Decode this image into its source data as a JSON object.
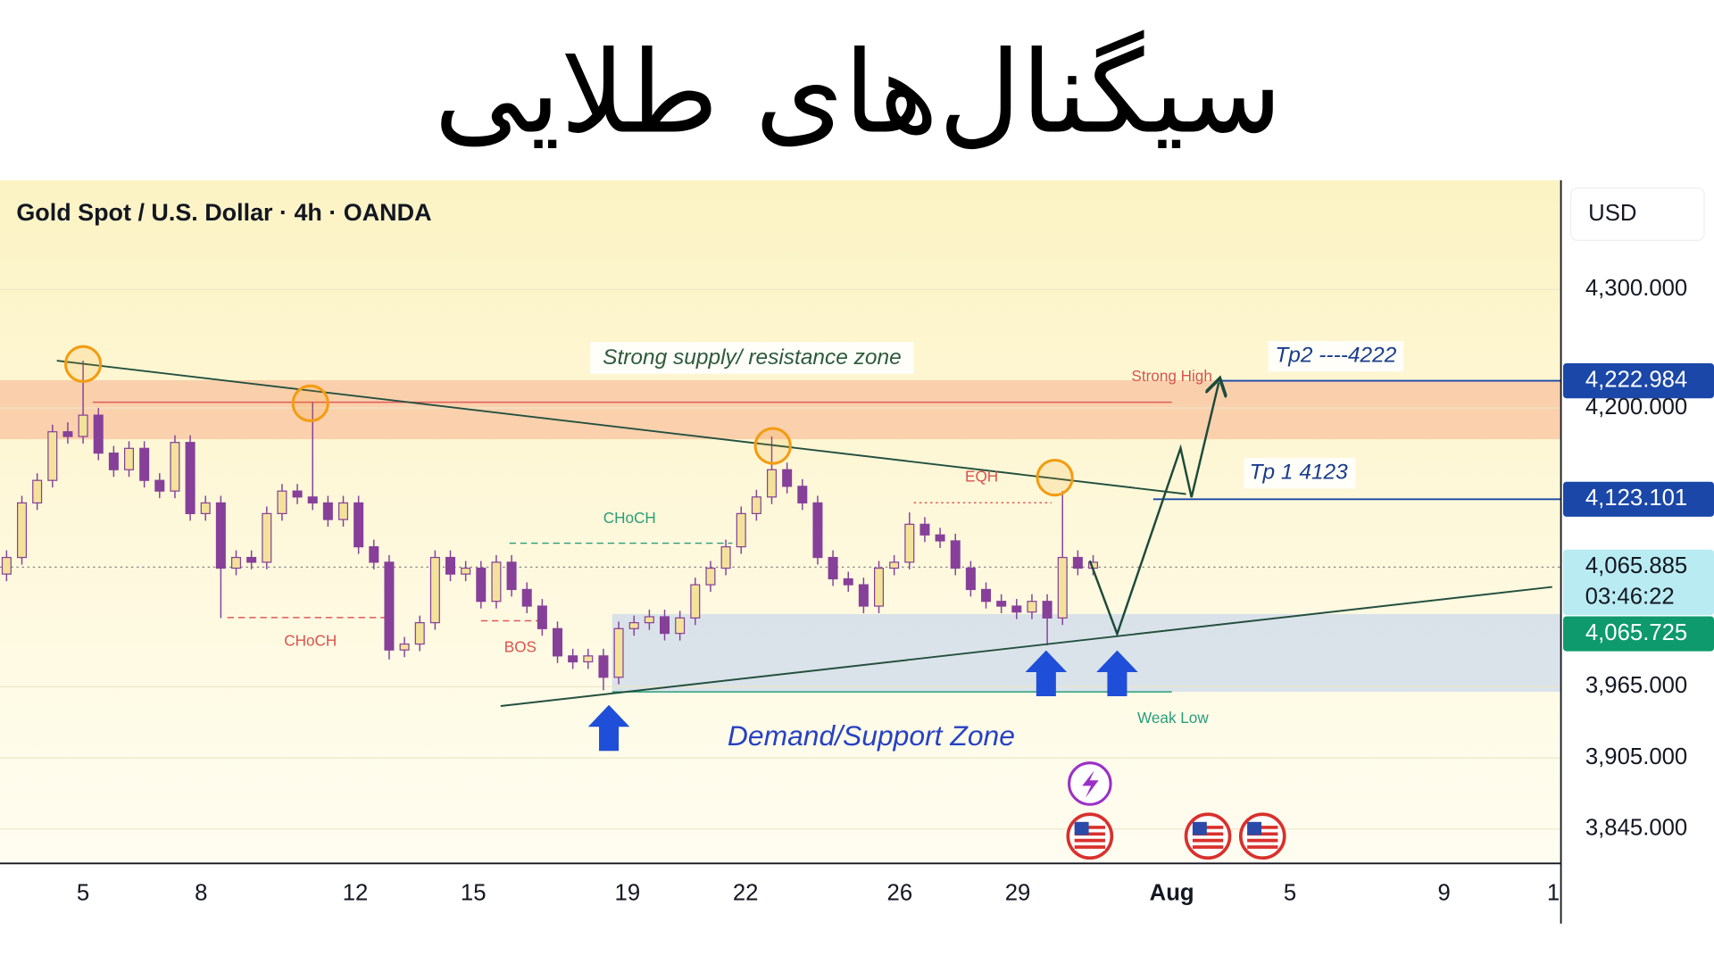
{
  "chart_data": {
    "type": "candlestick",
    "title": "سیگنال‌های طلایی",
    "subtitle": "Gold Spot / U.S. Dollar · 4h · OANDA",
    "currency": "USD",
    "up_color": "#f3e39a",
    "down_color": "#86409a",
    "grid": true,
    "xlim": [
      -0.43,
      101.57
    ],
    "ylim": [
      3816,
      4392
    ],
    "xticks": [
      {
        "value": 5.0,
        "label": "5"
      },
      {
        "value": 12.71,
        "label": "8"
      },
      {
        "value": 22.79,
        "label": "12"
      },
      {
        "value": 30.5,
        "label": "15"
      },
      {
        "value": 40.57,
        "label": "19"
      },
      {
        "value": 48.29,
        "label": "22"
      },
      {
        "value": 58.36,
        "label": "26"
      },
      {
        "value": 66.07,
        "label": "29"
      },
      {
        "value": 76.14,
        "label": "Aug"
      },
      {
        "value": 83.86,
        "label": "5"
      },
      {
        "value": 93.93,
        "label": "9"
      },
      {
        "value": 101.07,
        "label": "1"
      }
    ],
    "yticks": [
      {
        "value": 3845,
        "label": "3,845.000"
      },
      {
        "value": 3905,
        "label": "3,905.000"
      },
      {
        "value": 3965,
        "label": "3,965.000"
      },
      {
        "value": 4200,
        "label": "4,200.000"
      },
      {
        "value": 4300,
        "label": "4,300.000"
      }
    ],
    "x": [
      0,
      1,
      2,
      3,
      4,
      5,
      6,
      7,
      8,
      9,
      10,
      11,
      12,
      13,
      14,
      15,
      16,
      17,
      18,
      19,
      20,
      21,
      22,
      23,
      24,
      25,
      26,
      27,
      28,
      29,
      30,
      31,
      32,
      33,
      34,
      35,
      36,
      37,
      38,
      39,
      40,
      41,
      42,
      43,
      44,
      45,
      46,
      47,
      48,
      49,
      50,
      51,
      52,
      53,
      54,
      55,
      56,
      57,
      58,
      59,
      60,
      61,
      62,
      63,
      64,
      65,
      66,
      67,
      68,
      69,
      70,
      71
    ],
    "open": [
      4060,
      4074,
      4120,
      4139,
      4180,
      4176,
      4194,
      4162,
      4148,
      4166,
      4139,
      4130,
      4171,
      4111,
      4120,
      4065,
      4074,
      4070,
      4111,
      4130,
      4125,
      4120,
      4106,
      4120,
      4083,
      4070,
      3996,
      4001,
      4019,
      4074,
      4060,
      4065,
      4037,
      4070,
      4047,
      4033,
      4014,
      3991,
      3986,
      3991,
      3973,
      4014,
      4019,
      4024,
      4010,
      4023,
      4051,
      4065,
      4083,
      4111,
      4125,
      4148,
      4134,
      4120,
      4074,
      4056,
      4051,
      4033,
      4065,
      4070,
      4102,
      4093,
      4088,
      4065,
      4047,
      4037,
      4033,
      4028,
      4037,
      4023,
      4074,
      4065
    ],
    "high": [
      4080,
      4126,
      4145,
      4186,
      4188,
      4240,
      4200,
      4168,
      4172,
      4172,
      4145,
      4177,
      4177,
      4126,
      4126,
      4080,
      4080,
      4117,
      4136,
      4136,
      4205,
      4126,
      4126,
      4126,
      4089,
      4076,
      4007,
      4025,
      4080,
      4080,
      4071,
      4071,
      4076,
      4076,
      4053,
      4039,
      4020,
      3997,
      3997,
      3997,
      4020,
      4025,
      4030,
      4030,
      4029,
      4057,
      4071,
      4089,
      4117,
      4131,
      4176,
      4154,
      4140,
      4126,
      4080,
      4062,
      4057,
      4071,
      4076,
      4112,
      4108,
      4099,
      4094,
      4071,
      4053,
      4043,
      4039,
      4043,
      4043,
      4130,
      4080,
      4076
    ],
    "low": [
      4054,
      4068,
      4114,
      4133,
      4170,
      4170,
      4156,
      4142,
      4142,
      4133,
      4124,
      4124,
      4105,
      4105,
      4023,
      4059,
      4064,
      4064,
      4105,
      4119,
      4114,
      4100,
      4100,
      4077,
      4064,
      3988,
      3990,
      3995,
      4013,
      4054,
      4054,
      4031,
      4031,
      4041,
      4027,
      4008,
      3985,
      3980,
      3980,
      3962,
      3967,
      4008,
      4013,
      4004,
      4004,
      4017,
      4045,
      4059,
      4077,
      4105,
      4119,
      4128,
      4114,
      4068,
      4050,
      4045,
      4027,
      4027,
      4059,
      4064,
      4087,
      4082,
      4059,
      4041,
      4031,
      4027,
      4022,
      4022,
      4000,
      4017,
      4059,
      4059
    ],
    "close": [
      4074,
      4120,
      4139,
      4180,
      4176,
      4194,
      4162,
      4148,
      4166,
      4139,
      4130,
      4171,
      4111,
      4120,
      4065,
      4074,
      4070,
      4111,
      4130,
      4125,
      4120,
      4106,
      4120,
      4083,
      4070,
      3996,
      4001,
      4019,
      4074,
      4060,
      4065,
      4037,
      4070,
      4047,
      4033,
      4014,
      3991,
      3986,
      3991,
      3973,
      4014,
      4019,
      4024,
      4010,
      4023,
      4051,
      4065,
      4083,
      4111,
      4125,
      4148,
      4134,
      4120,
      4074,
      4056,
      4051,
      4033,
      4065,
      4070,
      4102,
      4093,
      4088,
      4065,
      4047,
      4037,
      4033,
      4028,
      4037,
      4023,
      4074,
      4065,
      4070
    ],
    "zones": [
      {
        "range": [
          4173.7,
          4223.5
        ],
        "color": "#f9c9a6"
      },
      {
        "range": [
          3960.8,
          4026.3
        ],
        "color": "#d3deea"
      }
    ],
    "price_labels": [
      {
        "value": 4222.984,
        "label": "4,222.984",
        "color": "#1a47a8"
      },
      {
        "value": 4123.101,
        "label": "4,123.101",
        "color": "#1a47a8"
      },
      {
        "value": 4065.885,
        "label": "4,065.885",
        "countdown": "03:46:22",
        "color": "#b9ecf2"
      },
      {
        "value": 4065.725,
        "label": "4,065.725",
        "color": "#0e9a6c"
      }
    ],
    "annotations": [
      "Strong supply/ resistance zone",
      "Demand/Support Zone",
      "Tp2 ----4222",
      "Tp 1 4123",
      "Strong High",
      "Weak Low",
      "CHoCH",
      "CHoCH",
      "BOS",
      "EQH"
    ]
  }
}
